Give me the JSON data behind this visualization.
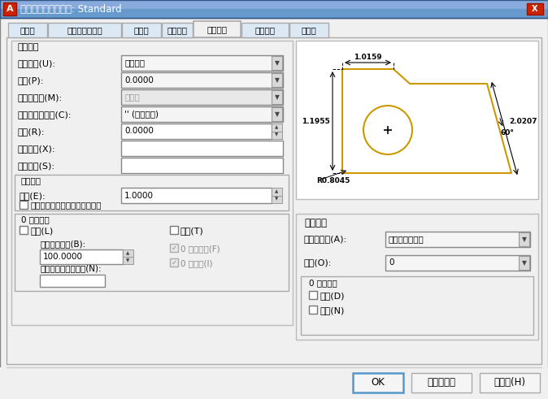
{
  "title": "寸法スタイルを修正: Standard",
  "bg_color": "#f0f0f0",
  "title_bar_color": "#5a8fc0",
  "tabs": [
    "寸法線",
    "シンボルと矢印",
    "寸法値",
    "フィット",
    "基本単位",
    "変換単位",
    "許容差"
  ],
  "active_tab": "基本単位",
  "preview_drawing_color": "#cc9900",
  "dropdown_unit": "十進表記",
  "dropdown_precision": "0.0000",
  "dropdown_fraction": "水平線",
  "dropdown_decimal_sep": "'' (ピリオド)",
  "round_value": "0.0000",
  "scale_value": "1.0000",
  "dropdown_angle_unit": "度（十進表記）",
  "dropdown_angle_precision": "0",
  "dim_top": "1.0159",
  "dim_left": "1.1955",
  "dim_right": "2.0207",
  "dim_angle": "60°",
  "dim_radius": "R0.8045",
  "button_ok": "OK",
  "button_cancel": "キャンセル",
  "button_help": "ヘルプ(H)"
}
